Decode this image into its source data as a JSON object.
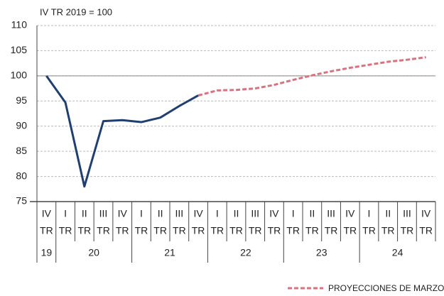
{
  "chart_data": {
    "type": "line",
    "subtitle": "IV TR 2019 = 100",
    "categories": [
      "IV",
      "I",
      "II",
      "III",
      "IV",
      "I",
      "II",
      "III",
      "IV",
      "I",
      "II",
      "III",
      "IV",
      "I",
      "II",
      "III",
      "IV",
      "I",
      "II",
      "III",
      "IV"
    ],
    "category_suffix": "TR",
    "years": [
      "19",
      "20",
      "21",
      "22",
      "23",
      "24"
    ],
    "series": [
      {
        "name": "",
        "color": "#1f3f73",
        "dash": false,
        "values": [
          100,
          94.7,
          78,
          91,
          91.2,
          90.8,
          91.7,
          94,
          96.1,
          null,
          null,
          null,
          null,
          null,
          null,
          null,
          null,
          null,
          null,
          null,
          null
        ]
      },
      {
        "name": "PROYECCIONES DE MARZO",
        "color": "#d9717f",
        "dash": true,
        "values": [
          null,
          null,
          null,
          null,
          null,
          null,
          null,
          null,
          96.1,
          97.1,
          97.2,
          97.5,
          98.2,
          99.2,
          100.1,
          100.9,
          101.6,
          102.2,
          102.8,
          103.2,
          103.7
        ]
      }
    ],
    "ylim": [
      75,
      110
    ],
    "yticks": [
      75,
      80,
      85,
      90,
      95,
      100,
      105,
      110
    ],
    "grid": true,
    "reference_line": 100
  }
}
